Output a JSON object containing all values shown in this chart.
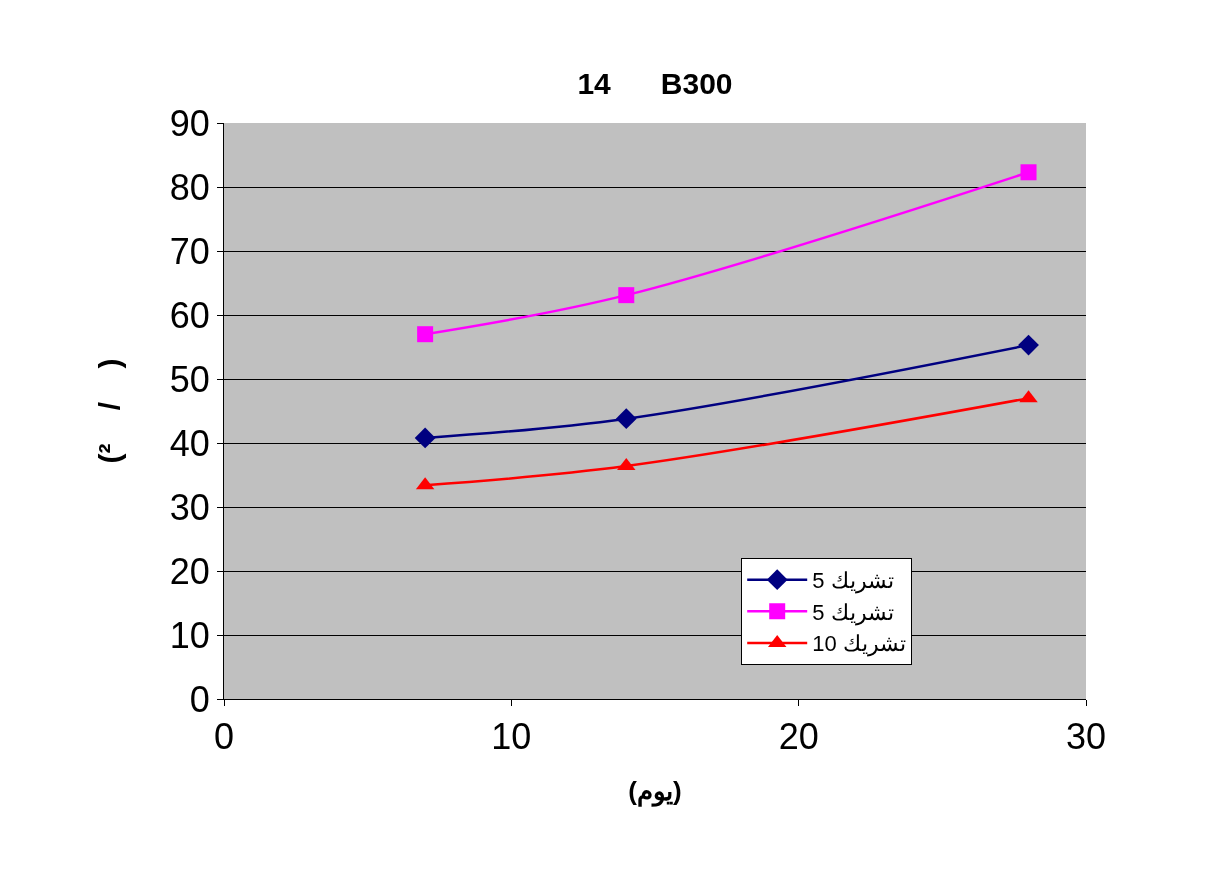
{
  "chart_data": {
    "type": "line",
    "title": "14      B300",
    "xlabel": "(يوم)",
    "ylabel": "(²    /    )",
    "x": [
      7,
      14,
      28
    ],
    "series": [
      {
        "name": "تشريك 5",
        "color": "#000080",
        "values": [
          40.8,
          43.8,
          55.3
        ],
        "marker": "diamond"
      },
      {
        "name": "تشريك 5",
        "color": "#ff00ff",
        "values": [
          57.0,
          63.1,
          82.3
        ],
        "marker": "square"
      },
      {
        "name": "تشريك 10",
        "color": "#ff0000",
        "values": [
          33.4,
          36.4,
          47.0
        ],
        "marker": "triangle"
      }
    ],
    "xlim": [
      0,
      30
    ],
    "xticks": [
      0,
      10,
      20,
      30
    ],
    "ylim": [
      0,
      90
    ],
    "yticks": [
      0,
      10,
      20,
      30,
      40,
      50,
      60,
      70,
      80,
      90
    ],
    "grid": "y",
    "legend": "bottom right",
    "line_style": "solid"
  }
}
